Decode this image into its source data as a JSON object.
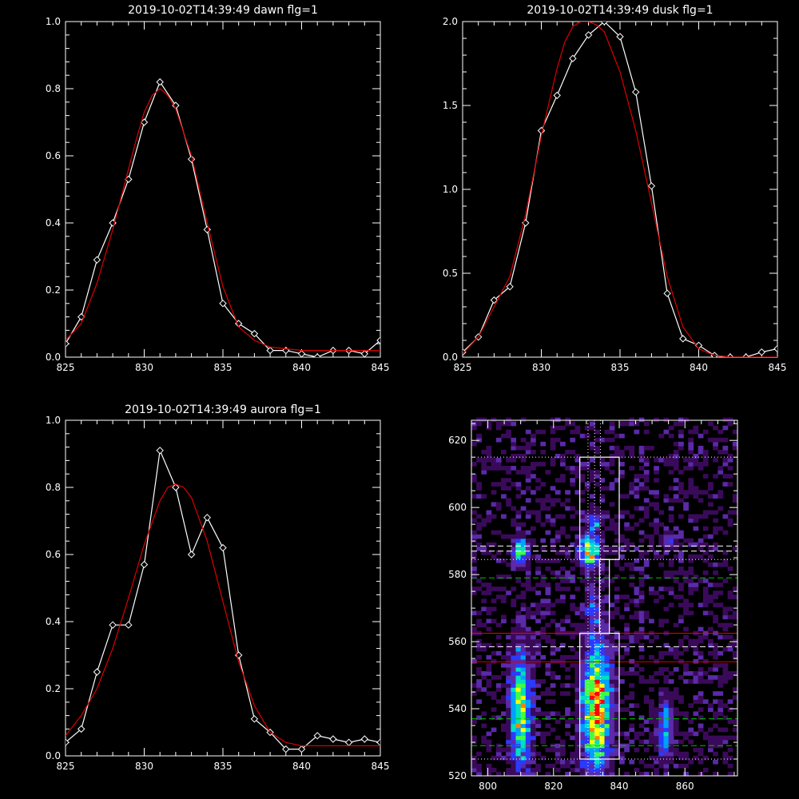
{
  "chart_data": [
    {
      "type": "line",
      "title": "2019-10-02T14:39:49 dawn flg=1",
      "xlim": [
        825,
        845
      ],
      "ylim": [
        0,
        1.0
      ],
      "xticks": [
        825,
        830,
        835,
        840,
        845
      ],
      "xtick_labels": [
        "825",
        "830",
        "835",
        "840",
        "845"
      ],
      "yticks": [
        0,
        0.2,
        0.4,
        0.6,
        0.8,
        1.0
      ],
      "ytick_labels": [
        "0.0",
        "0.2",
        "0.4",
        "0.6",
        "0.8",
        "1.0"
      ],
      "colors": {
        "data": "#ffffff",
        "fit": "#dd0000",
        "axes": "#ffffff"
      },
      "series": [
        {
          "role": "data",
          "marker": "diamond",
          "x": [
            825,
            826,
            827,
            828,
            829,
            830,
            831,
            832,
            833,
            834,
            835,
            836,
            837,
            838,
            839,
            840,
            841,
            842,
            843,
            844,
            845
          ],
          "y": [
            0.04,
            0.12,
            0.29,
            0.4,
            0.53,
            0.7,
            0.82,
            0.75,
            0.59,
            0.38,
            0.16,
            0.1,
            0.07,
            0.02,
            0.02,
            0.01,
            0.0,
            0.02,
            0.02,
            0.01,
            0.05
          ]
        },
        {
          "role": "fit",
          "marker": "none",
          "x": [
            825,
            826,
            827,
            828,
            829,
            829.5,
            830,
            830.5,
            831,
            831.5,
            832,
            833,
            834,
            835,
            836,
            837,
            838,
            839,
            840,
            841,
            842,
            843,
            844,
            845
          ],
          "y": [
            0.05,
            0.1,
            0.22,
            0.38,
            0.56,
            0.65,
            0.73,
            0.78,
            0.8,
            0.78,
            0.74,
            0.6,
            0.4,
            0.21,
            0.09,
            0.05,
            0.03,
            0.025,
            0.02,
            0.02,
            0.02,
            0.02,
            0.02,
            0.02
          ]
        }
      ]
    },
    {
      "type": "line",
      "title": "2019-10-02T14:39:49 dusk flg=1",
      "xlim": [
        825,
        845
      ],
      "ylim": [
        0,
        2.0
      ],
      "xticks": [
        825,
        830,
        835,
        840,
        845
      ],
      "xtick_labels": [
        "825",
        "830",
        "835",
        "840",
        "845"
      ],
      "yticks": [
        0,
        0.5,
        1.0,
        1.5,
        2.0
      ],
      "ytick_labels": [
        "0.0",
        "0.5",
        "1.0",
        "1.5",
        "2.0"
      ],
      "colors": {
        "data": "#ffffff",
        "fit": "#dd0000",
        "axes": "#ffffff"
      },
      "series": [
        {
          "role": "data",
          "marker": "diamond",
          "x": [
            825,
            826,
            827,
            828,
            829,
            830,
            831,
            832,
            833,
            834,
            835,
            836,
            837,
            838,
            839,
            840,
            841,
            842,
            843,
            844,
            845
          ],
          "y": [
            0.03,
            0.12,
            0.34,
            0.42,
            0.8,
            1.35,
            1.56,
            1.78,
            1.92,
            2.0,
            1.91,
            1.58,
            1.02,
            0.38,
            0.11,
            0.07,
            0.01,
            0.0,
            0.0,
            0.03,
            0.05
          ]
        },
        {
          "role": "fit",
          "marker": "none",
          "x": [
            825,
            826,
            827,
            828,
            829,
            830,
            831,
            831.5,
            832,
            832.5,
            833,
            833.5,
            834,
            835,
            836,
            837,
            838,
            839,
            840,
            841,
            842,
            843,
            844,
            845
          ],
          "y": [
            0.02,
            0.12,
            0.3,
            0.48,
            0.85,
            1.32,
            1.72,
            1.88,
            1.97,
            2.0,
            2.0,
            1.98,
            1.94,
            1.7,
            1.35,
            0.92,
            0.48,
            0.18,
            0.05,
            0.01,
            0.0,
            0.0,
            0.0,
            0.0
          ]
        }
      ]
    },
    {
      "type": "line",
      "title": "2019-10-02T14:39:49 aurora flg=1",
      "xlim": [
        825,
        845
      ],
      "ylim": [
        0,
        1.0
      ],
      "xticks": [
        825,
        830,
        835,
        840,
        845
      ],
      "xtick_labels": [
        "825",
        "830",
        "835",
        "840",
        "845"
      ],
      "yticks": [
        0,
        0.2,
        0.4,
        0.6,
        0.8,
        1.0
      ],
      "ytick_labels": [
        "0.0",
        "0.2",
        "0.4",
        "0.6",
        "0.8",
        "1.0"
      ],
      "colors": {
        "data": "#ffffff",
        "fit": "#dd0000",
        "axes": "#ffffff"
      },
      "series": [
        {
          "role": "data",
          "marker": "diamond",
          "x": [
            825,
            826,
            827,
            828,
            829,
            830,
            831,
            832,
            833,
            834,
            835,
            836,
            837,
            838,
            839,
            840,
            841,
            842,
            843,
            844,
            845
          ],
          "y": [
            0.04,
            0.08,
            0.25,
            0.39,
            0.39,
            0.57,
            0.91,
            0.8,
            0.6,
            0.71,
            0.62,
            0.3,
            0.11,
            0.07,
            0.02,
            0.02,
            0.06,
            0.05,
            0.04,
            0.05,
            0.04
          ]
        },
        {
          "role": "fit",
          "marker": "none",
          "x": [
            825,
            826,
            827,
            828,
            829,
            830,
            831,
            831.5,
            832,
            832.5,
            833,
            834,
            835,
            836,
            837,
            838,
            839,
            840,
            841,
            842,
            843,
            844,
            845
          ],
          "y": [
            0.06,
            0.12,
            0.2,
            0.32,
            0.47,
            0.63,
            0.76,
            0.8,
            0.81,
            0.8,
            0.77,
            0.64,
            0.46,
            0.28,
            0.15,
            0.07,
            0.04,
            0.03,
            0.03,
            0.03,
            0.03,
            0.03,
            0.03
          ]
        }
      ]
    },
    {
      "type": "heatmap",
      "title": "",
      "xlim": [
        795,
        876
      ],
      "ylim": [
        520,
        626
      ],
      "xticks": [
        800,
        820,
        840,
        860
      ],
      "xtick_labels": [
        "800",
        "820",
        "840",
        "860"
      ],
      "yticks": [
        520,
        540,
        560,
        580,
        600,
        620
      ],
      "ytick_labels": [
        "520",
        "540",
        "560",
        "580",
        "600",
        "620"
      ],
      "colormap": [
        "#000000",
        "#3a0a5a",
        "#5a2aa8",
        "#2a3aff",
        "#00a0ff",
        "#00e0c0",
        "#40ff40",
        "#ffff00",
        "#ff8000",
        "#ff0000"
      ],
      "cell": {
        "dx": 1.5,
        "dy": 1.2
      },
      "blobs": [
        {
          "cx": 810,
          "cy": 587,
          "sx": 1.6,
          "sy": 2.6,
          "amp": 0.7
        },
        {
          "cx": 831,
          "cy": 587,
          "sx": 2.0,
          "sy": 3.0,
          "amp": 0.88
        },
        {
          "cx": 832,
          "cy": 596,
          "sx": 1.5,
          "sy": 2.0,
          "amp": 0.45
        },
        {
          "cx": 810,
          "cy": 540,
          "sx": 2.2,
          "sy": 12.0,
          "amp": 0.72
        },
        {
          "cx": 833,
          "cy": 540,
          "sx": 2.8,
          "sy": 13.0,
          "amp": 0.98
        },
        {
          "cx": 854,
          "cy": 534,
          "sx": 1.6,
          "sy": 6.0,
          "amp": 0.48
        },
        {
          "cx": 855,
          "cy": 590,
          "sx": 1.2,
          "sy": 1.5,
          "amp": 0.35
        },
        {
          "cx": 832,
          "cy": 570,
          "sx": 1.2,
          "sy": 5.0,
          "amp": 0.22
        }
      ],
      "noise_level": 0.2,
      "boxes": [
        {
          "x0": 828,
          "x1": 840,
          "y0": 584.5,
          "y1": 615
        },
        {
          "x0": 834,
          "x1": 837,
          "y0": 562.5,
          "y1": 584.5
        },
        {
          "x0": 828,
          "x1": 840,
          "y0": 525,
          "y1": 562.5
        }
      ],
      "vlines": [
        {
          "x": 830.5,
          "color": "#ffffff",
          "dash": "dotted"
        },
        {
          "x": 832.5,
          "color": "#ffffff",
          "dash": "dotted"
        },
        {
          "x": 834.3,
          "color": "#ffffff",
          "dash": "dotted"
        }
      ],
      "hlines": [
        {
          "y": 615,
          "color": "#ffffff",
          "dash": "dotted"
        },
        {
          "y": 588.5,
          "color": "#ffffff",
          "dash": "dashed"
        },
        {
          "y": 587,
          "color": "#ffffff",
          "dash": "dashed"
        },
        {
          "y": 584.5,
          "color": "#ffffff",
          "dash": "dotted"
        },
        {
          "y": 579,
          "color": "#00c000",
          "dash": "dashed"
        },
        {
          "y": 562.5,
          "color": "#ff0000",
          "dash": "solid"
        },
        {
          "y": 558.5,
          "color": "#ffffff",
          "dash": "dashed"
        },
        {
          "y": 554,
          "color": "#dd0000",
          "dash": "solid"
        },
        {
          "y": 537,
          "color": "#00c000",
          "dash": "dashed"
        },
        {
          "y": 529,
          "color": "#00c000",
          "dash": "dashed"
        },
        {
          "y": 525,
          "color": "#ffffff",
          "dash": "dotted"
        }
      ]
    }
  ]
}
